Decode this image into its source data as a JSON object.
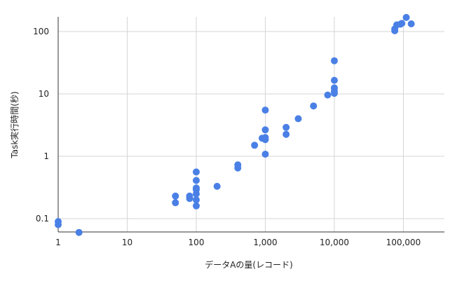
{
  "chart_data": {
    "type": "scatter",
    "title": "",
    "xlabel": "データAの量(レコード)",
    "ylabel": "Task実行時間(秒)",
    "x_scale": "log",
    "y_scale": "log",
    "xlim": [
      1,
      500000
    ],
    "ylim": [
      0.06,
      180
    ],
    "grid": true,
    "legend": "none",
    "x_ticks": [
      1,
      10,
      100,
      1000,
      10000,
      100000
    ],
    "x_tick_labels": [
      "1",
      "10",
      "100",
      "1,000",
      "10,000",
      "100,000"
    ],
    "y_ticks": [
      0.1,
      1,
      10,
      100
    ],
    "y_tick_labels": [
      "0.1",
      "1",
      "10",
      "100"
    ],
    "colors": {
      "points": "#4a80e6",
      "grid": "#d6d6d6",
      "axis": "#333333",
      "text": "#222222"
    },
    "series": [
      {
        "points": [
          [
            1,
            0.09
          ],
          [
            1,
            0.08
          ],
          [
            2,
            0.06
          ],
          [
            50,
            0.23
          ],
          [
            50,
            0.18
          ],
          [
            80,
            0.23
          ],
          [
            80,
            0.21
          ],
          [
            100,
            0.56
          ],
          [
            100,
            0.41
          ],
          [
            100,
            0.31
          ],
          [
            100,
            0.29
          ],
          [
            100,
            0.25
          ],
          [
            100,
            0.2
          ],
          [
            100,
            0.16
          ],
          [
            200,
            0.33
          ],
          [
            400,
            0.73
          ],
          [
            400,
            0.65
          ],
          [
            700,
            1.5
          ],
          [
            900,
            1.95
          ],
          [
            1000,
            1.85
          ],
          [
            1000,
            2.0
          ],
          [
            1000,
            5.5
          ],
          [
            1000,
            2.65
          ],
          [
            1000,
            1.08
          ],
          [
            2000,
            2.9
          ],
          [
            2000,
            2.25
          ],
          [
            3000,
            4.0
          ],
          [
            5000,
            6.4
          ],
          [
            8000,
            9.6
          ],
          [
            10000,
            34
          ],
          [
            10000,
            16.5
          ],
          [
            10000,
            12.5
          ],
          [
            10000,
            11
          ],
          [
            10000,
            10.2
          ],
          [
            75000,
            110
          ],
          [
            75000,
            103
          ],
          [
            80000,
            128
          ],
          [
            90000,
            131
          ],
          [
            95000,
            135
          ],
          [
            110000,
            168
          ],
          [
            130000,
            133
          ]
        ]
      }
    ]
  }
}
